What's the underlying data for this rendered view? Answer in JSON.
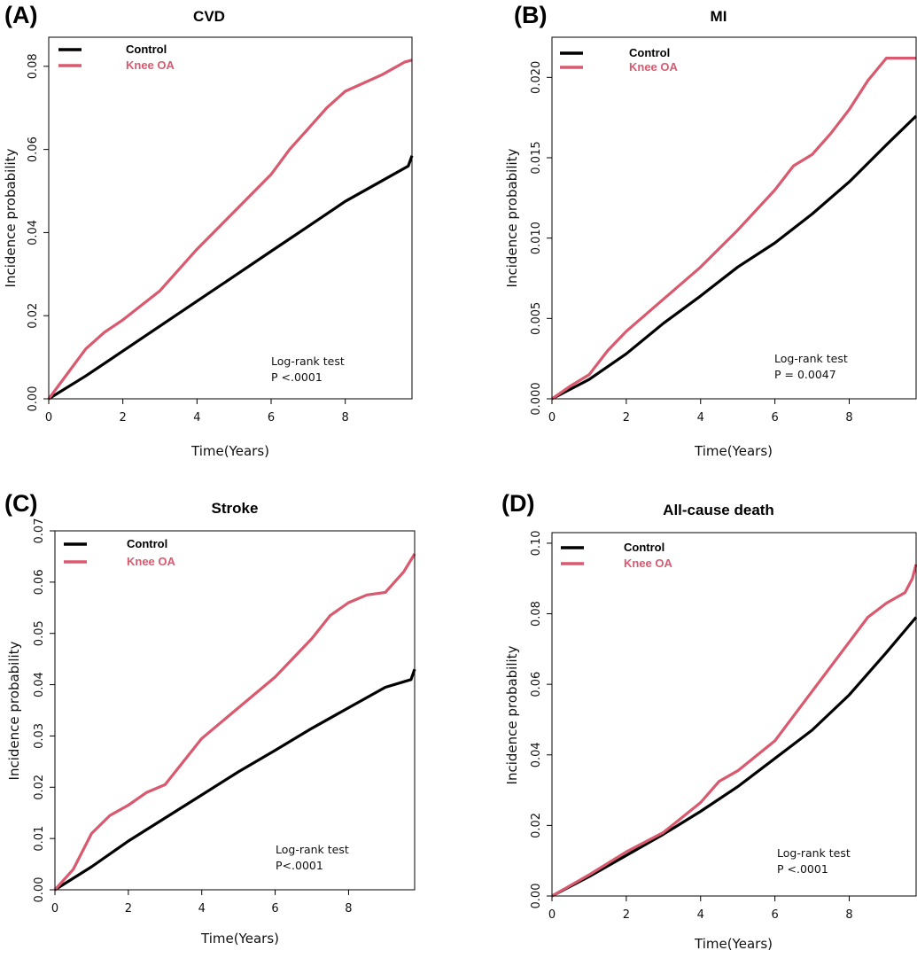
{
  "chart_data": [
    {
      "type": "line",
      "panel_label": "(A)",
      "title": "CVD",
      "xlabel": "Time(Years)",
      "ylabel": "Incidence probability",
      "xlim": [
        0,
        9.8
      ],
      "ylim": [
        0,
        0.087
      ],
      "xticks": [
        0,
        2,
        4,
        6,
        8
      ],
      "xtick_labels": [
        "0",
        "2",
        "4",
        "6",
        "8"
      ],
      "yticks": [
        0,
        0.02,
        0.04,
        0.06,
        0.08
      ],
      "ytick_labels": [
        "0.00",
        "0.02",
        "0.04",
        "0.06",
        "0.08"
      ],
      "legend_position": "top-left",
      "annotation": [
        "Log-rank test",
        "P <.0001"
      ],
      "series": [
        {
          "name": "Control",
          "color": "#000000",
          "x": [
            0,
            1,
            2,
            3,
            4,
            5,
            6,
            7,
            8,
            9,
            9.7,
            9.8
          ],
          "y": [
            0,
            0.0055,
            0.0115,
            0.0175,
            0.0235,
            0.0295,
            0.0355,
            0.0415,
            0.0475,
            0.0525,
            0.056,
            0.0585
          ]
        },
        {
          "name": "Knee OA",
          "color": "#d9596e",
          "x": [
            0,
            1,
            1.5,
            2,
            3,
            4,
            5,
            6,
            6.5,
            7,
            7.5,
            8,
            9,
            9.6,
            9.8
          ],
          "y": [
            0,
            0.012,
            0.016,
            0.019,
            0.026,
            0.036,
            0.045,
            0.054,
            0.06,
            0.065,
            0.07,
            0.074,
            0.078,
            0.081,
            0.0815
          ]
        }
      ]
    },
    {
      "type": "line",
      "panel_label": "(B)",
      "title": "MI",
      "xlabel": "Time(Years)",
      "ylabel": "Incidence probability",
      "xlim": [
        0,
        9.8
      ],
      "ylim": [
        0,
        0.0225
      ],
      "xticks": [
        0,
        2,
        4,
        6,
        8
      ],
      "xtick_labels": [
        "0",
        "2",
        "4",
        "6",
        "8"
      ],
      "yticks": [
        0,
        0.005,
        0.01,
        0.015,
        0.02
      ],
      "ytick_labels": [
        "0.000",
        "0.005",
        "0.010",
        "0.015",
        "0.020"
      ],
      "legend_position": "top-left",
      "annotation": [
        "Log-rank test",
        "P  = 0.0047"
      ],
      "series": [
        {
          "name": "Control",
          "color": "#000000",
          "x": [
            0,
            1,
            2,
            3,
            4,
            5,
            6,
            7,
            8,
            9,
            9.8
          ],
          "y": [
            0,
            0.0012,
            0.0028,
            0.0047,
            0.0064,
            0.0082,
            0.0097,
            0.0115,
            0.0135,
            0.0158,
            0.0176
          ]
        },
        {
          "name": "Knee OA",
          "color": "#d9596e",
          "x": [
            0,
            0.5,
            1,
            1.5,
            2,
            3,
            4,
            5,
            6,
            6.5,
            7,
            7.5,
            8,
            8.5,
            9,
            9.8
          ],
          "y": [
            0,
            0.0008,
            0.0015,
            0.003,
            0.0042,
            0.0062,
            0.0082,
            0.0105,
            0.013,
            0.0145,
            0.0152,
            0.0165,
            0.018,
            0.0198,
            0.0212,
            0.0212
          ]
        }
      ]
    },
    {
      "type": "line",
      "panel_label": "(C)",
      "title": "Stroke",
      "xlabel": "Time(Years)",
      "ylabel": "Incidence probability",
      "xlim": [
        0,
        9.8
      ],
      "ylim": [
        0,
        0.07
      ],
      "xticks": [
        0,
        2,
        4,
        6,
        8
      ],
      "xtick_labels": [
        "0",
        "2",
        "4",
        "6",
        "8"
      ],
      "yticks": [
        0,
        0.01,
        0.02,
        0.03,
        0.04,
        0.05,
        0.06,
        0.07
      ],
      "ytick_labels": [
        "0.00",
        "0.01",
        "0.02",
        "0.03",
        "0.04",
        "0.05",
        "0.06",
        "0.07"
      ],
      "legend_position": "top-left",
      "annotation": [
        "Log-rank test",
        "P<.0001"
      ],
      "series": [
        {
          "name": "Control",
          "color": "#000000",
          "x": [
            0,
            1,
            2,
            3,
            4,
            5,
            6,
            7,
            8,
            9,
            9.7,
            9.8
          ],
          "y": [
            0,
            0.0045,
            0.0095,
            0.014,
            0.0185,
            0.023,
            0.0272,
            0.0315,
            0.0355,
            0.0395,
            0.041,
            0.043
          ]
        },
        {
          "name": "Knee OA",
          "color": "#d9596e",
          "x": [
            0,
            0.5,
            1,
            1.5,
            2,
            2.5,
            3,
            4,
            5,
            6,
            7,
            7.5,
            8,
            8.5,
            9,
            9.5,
            9.8
          ],
          "y": [
            0,
            0.004,
            0.011,
            0.0145,
            0.0165,
            0.019,
            0.0205,
            0.0295,
            0.0355,
            0.0415,
            0.049,
            0.0535,
            0.056,
            0.0575,
            0.058,
            0.062,
            0.0655
          ]
        }
      ]
    },
    {
      "type": "line",
      "panel_label": "(D)",
      "title": "All-cause death",
      "xlabel": "Time(Years)",
      "ylabel": "Incidence probability",
      "xlim": [
        0,
        9.8
      ],
      "ylim": [
        0,
        0.103
      ],
      "xticks": [
        0,
        2,
        4,
        6,
        8
      ],
      "xtick_labels": [
        "0",
        "2",
        "4",
        "6",
        "8"
      ],
      "yticks": [
        0,
        0.02,
        0.04,
        0.06,
        0.08,
        0.1
      ],
      "ytick_labels": [
        "0.00",
        "0.02",
        "0.04",
        "0.06",
        "0.08",
        "0.10"
      ],
      "legend_position": "top-left",
      "annotation": [
        "Log-rank test",
        "P <.0001"
      ],
      "series": [
        {
          "name": "Control",
          "color": "#000000",
          "x": [
            0,
            1,
            2,
            3,
            4,
            5,
            6,
            7,
            8,
            9,
            9.8
          ],
          "y": [
            0,
            0.0055,
            0.0115,
            0.0175,
            0.024,
            0.031,
            0.039,
            0.047,
            0.057,
            0.069,
            0.079
          ]
        },
        {
          "name": "Knee OA",
          "color": "#d9596e",
          "x": [
            0,
            1,
            2,
            3,
            4,
            4.5,
            5,
            6,
            7,
            8,
            8.5,
            9,
            9.5,
            9.7,
            9.8
          ],
          "y": [
            0,
            0.006,
            0.0125,
            0.018,
            0.0265,
            0.0325,
            0.0355,
            0.044,
            0.058,
            0.072,
            0.079,
            0.083,
            0.086,
            0.09,
            0.094
          ]
        }
      ]
    }
  ]
}
